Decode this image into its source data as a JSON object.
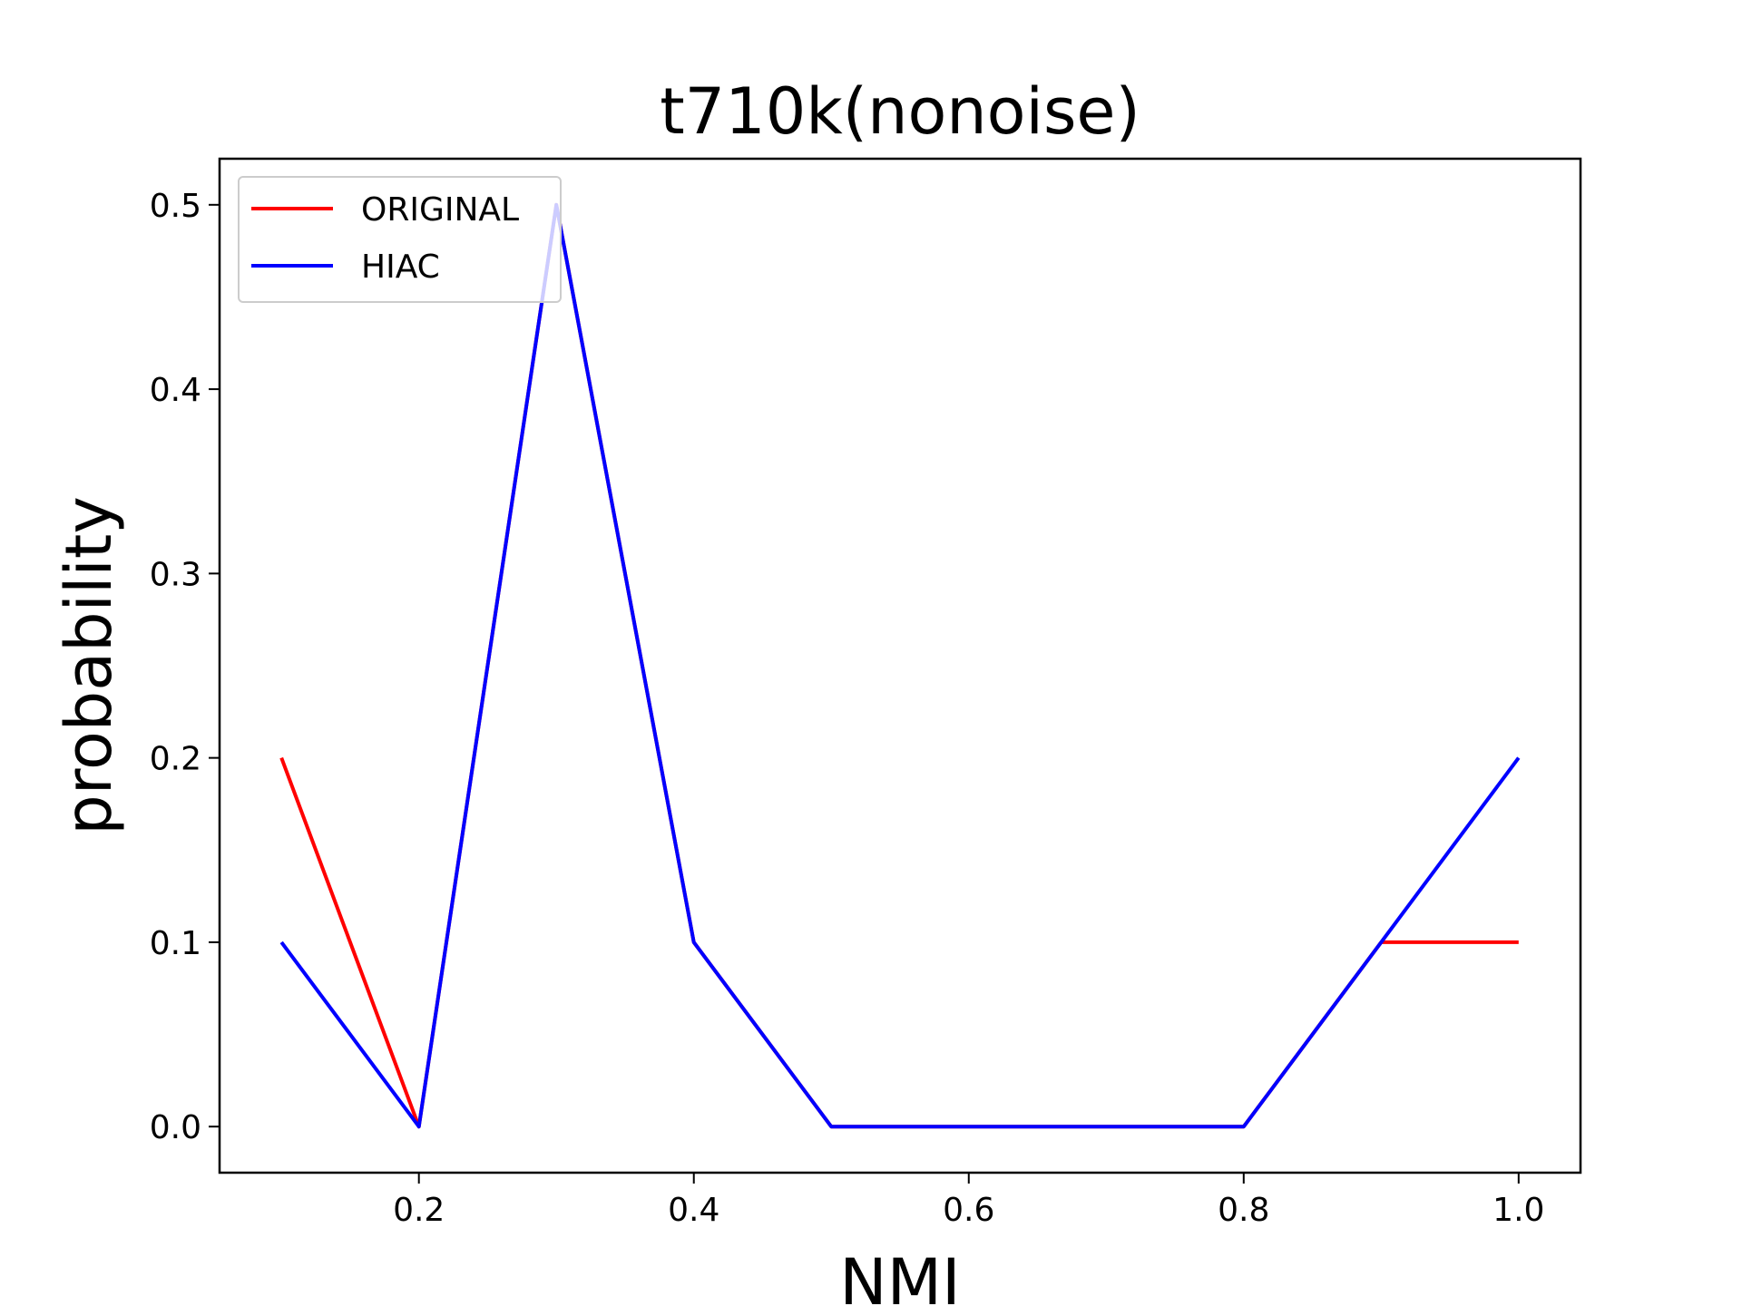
{
  "chart_data": {
    "type": "line",
    "title": "t710k(nonoise)",
    "xlabel": "NMI",
    "ylabel": "probability",
    "x": [
      0.1,
      0.2,
      0.3,
      0.4,
      0.5,
      0.6,
      0.7,
      0.8,
      0.9,
      1.0
    ],
    "series": [
      {
        "name": "ORIGINAL",
        "color": "#ff0000",
        "values": [
          0.2,
          0.0,
          0.5,
          0.1,
          0.0,
          0.0,
          0.0,
          0.0,
          0.1,
          0.1
        ]
      },
      {
        "name": "HIAC",
        "color": "#0000ff",
        "values": [
          0.1,
          0.0,
          0.5,
          0.1,
          0.0,
          0.0,
          0.0,
          0.0,
          0.1,
          0.2
        ]
      }
    ],
    "xlim": [
      0.055,
      1.045
    ],
    "ylim": [
      -0.025,
      0.525
    ],
    "xticks": [
      0.2,
      0.4,
      0.6,
      0.8,
      1.0
    ],
    "xtick_labels": [
      "0.2",
      "0.4",
      "0.6",
      "0.8",
      "1.0"
    ],
    "yticks": [
      0.0,
      0.1,
      0.2,
      0.3,
      0.4,
      0.5
    ],
    "ytick_labels": [
      "0.0",
      "0.1",
      "0.2",
      "0.3",
      "0.4",
      "0.5"
    ],
    "grid": false,
    "legend_position": "upper left"
  }
}
